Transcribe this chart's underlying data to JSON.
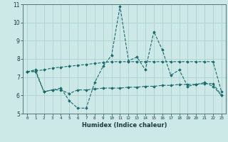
{
  "title": "",
  "xlabel": "Humidex (Indice chaleur)",
  "ylabel": "",
  "background_color": "#cce9e8",
  "grid_color": "#aed0cf",
  "line_color": "#1a6b6b",
  "x": [
    0,
    1,
    2,
    3,
    4,
    5,
    6,
    7,
    8,
    9,
    10,
    11,
    12,
    13,
    14,
    15,
    16,
    17,
    18,
    19,
    20,
    21,
    22,
    23
  ],
  "series1": [
    7.3,
    7.4,
    6.2,
    6.3,
    6.4,
    5.7,
    5.3,
    5.3,
    6.7,
    7.6,
    8.2,
    10.9,
    7.9,
    8.1,
    7.4,
    9.5,
    8.5,
    7.1,
    7.4,
    6.5,
    6.6,
    6.7,
    6.5,
    6.0
  ],
  "series2": [
    7.3,
    7.3,
    6.2,
    6.3,
    6.3,
    6.1,
    6.3,
    6.3,
    6.35,
    6.4,
    6.4,
    6.4,
    6.45,
    6.45,
    6.5,
    6.5,
    6.55,
    6.55,
    6.6,
    6.6,
    6.6,
    6.65,
    6.65,
    6.0
  ],
  "series3": [
    7.3,
    7.35,
    7.4,
    7.5,
    7.55,
    7.6,
    7.65,
    7.7,
    7.75,
    7.8,
    7.85,
    7.85,
    7.85,
    7.85,
    7.85,
    7.85,
    7.85,
    7.85,
    7.85,
    7.85,
    7.85,
    7.85,
    7.85,
    6.2
  ],
  "ylim": [
    5,
    11
  ],
  "xlim": [
    -0.5,
    23.5
  ],
  "yticks": [
    5,
    6,
    7,
    8,
    9,
    10,
    11
  ],
  "xticks": [
    0,
    1,
    2,
    3,
    4,
    5,
    6,
    7,
    8,
    9,
    10,
    11,
    12,
    13,
    14,
    15,
    16,
    17,
    18,
    19,
    20,
    21,
    22,
    23
  ]
}
